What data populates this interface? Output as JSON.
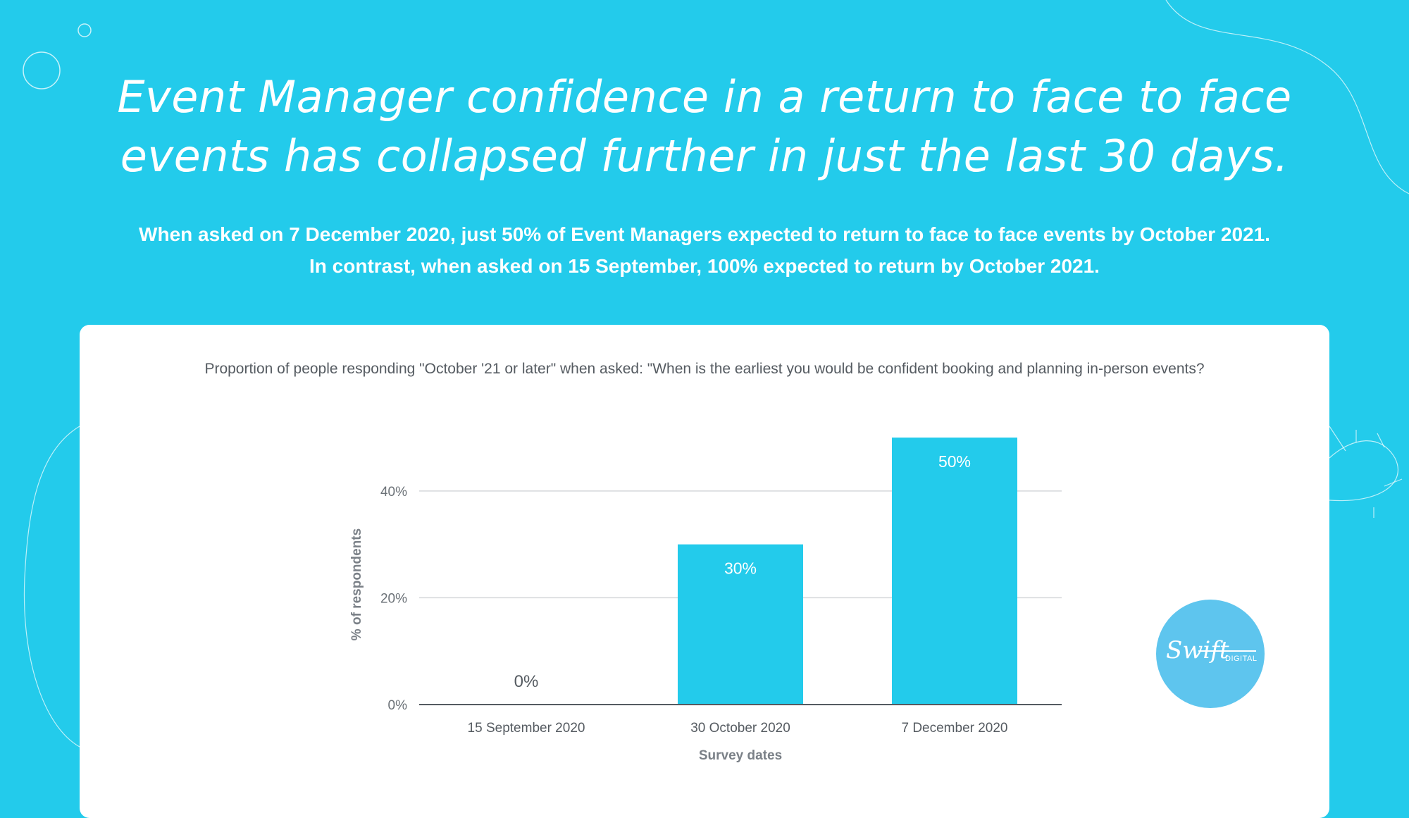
{
  "headline": {
    "line1": "Event Manager confidence in a return to face to face",
    "line2": "events has collapsed further in just the last 30 days."
  },
  "subhead": {
    "line1": "When asked on 7 December 2020, just 50% of Event Managers expected to return to face to face events by October 2021.",
    "line2": "In contrast, when asked on 15 September, 100% expected to return by October 2021."
  },
  "question": "Proportion of people responding \"October '21 or later\" when asked: \"When is the earliest you would be confident booking and planning in-person events?",
  "logo": {
    "script": "Swift",
    "sub": "DIGITAL"
  },
  "colors": {
    "background": "#23cbeb",
    "bar": "#23cbeb",
    "card": "#ffffff",
    "logo": "#5ec5ee"
  },
  "chart_data": {
    "type": "bar",
    "categories": [
      "15 September 2020",
      "30 October 2020",
      "7 December 2020"
    ],
    "values": [
      0,
      30,
      50
    ],
    "data_labels": [
      "0%",
      "30%",
      "50%"
    ],
    "xlabel": "Survey dates",
    "ylabel": "% of respondents",
    "yticks": [
      0,
      20,
      40
    ],
    "ytick_labels": [
      "0%",
      "20%",
      "40%"
    ],
    "ylim": [
      0,
      50.8
    ],
    "grid": true,
    "legend": "none"
  }
}
